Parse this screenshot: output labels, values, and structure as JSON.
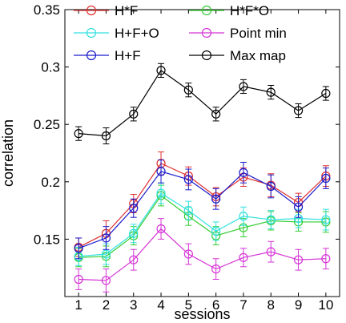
{
  "chart_data": {
    "type": "line",
    "title": "",
    "xlabel": "sessions",
    "ylabel": "correlation",
    "x": [
      1,
      2,
      3,
      4,
      5,
      6,
      7,
      8,
      9,
      10
    ],
    "xlim": [
      0.5,
      10.5
    ],
    "ylim": [
      0.1,
      0.35
    ],
    "xticks": [
      "1",
      "2",
      "3",
      "4",
      "5",
      "6",
      "7",
      "8",
      "9",
      "10"
    ],
    "yticks": [
      0.15,
      0.2,
      0.25,
      0.3,
      0.35
    ],
    "ytick_labels": [
      "0.15",
      "0.2",
      "0.25",
      "0.3",
      "0.35"
    ],
    "grid": false,
    "legend_placement": "top, two columns",
    "series": [
      {
        "name": "H*F",
        "color": "#e03030",
        "values": [
          0.143,
          0.155,
          0.181,
          0.216,
          0.205,
          0.187,
          0.204,
          0.197,
          0.182,
          0.205
        ],
        "errors": [
          0.008,
          0.011,
          0.008,
          0.01,
          0.008,
          0.008,
          0.008,
          0.01,
          0.008,
          0.009
        ]
      },
      {
        "name": "H*F*O",
        "color": "#33cc33",
        "values": [
          0.134,
          0.135,
          0.153,
          0.188,
          0.17,
          0.153,
          0.16,
          0.166,
          0.165,
          0.165
        ],
        "errors": [
          0.008,
          0.009,
          0.008,
          0.009,
          0.008,
          0.008,
          0.008,
          0.008,
          0.008,
          0.009
        ]
      },
      {
        "name": "H+F+O",
        "color": "#33e0e0",
        "values": [
          0.135,
          0.137,
          0.155,
          0.19,
          0.175,
          0.157,
          0.17,
          0.167,
          0.168,
          0.167
        ],
        "errors": [
          0.008,
          0.009,
          0.008,
          0.009,
          0.008,
          0.008,
          0.008,
          0.008,
          0.008,
          0.009
        ]
      },
      {
        "name": "Point min",
        "color": "#d633d6",
        "values": [
          0.115,
          0.114,
          0.132,
          0.159,
          0.137,
          0.124,
          0.134,
          0.139,
          0.132,
          0.133
        ],
        "errors": [
          0.009,
          0.01,
          0.009,
          0.009,
          0.009,
          0.009,
          0.008,
          0.009,
          0.009,
          0.009
        ]
      },
      {
        "name": "H+F",
        "color": "#1a1acc",
        "values": [
          0.142,
          0.151,
          0.177,
          0.209,
          0.202,
          0.185,
          0.208,
          0.196,
          0.178,
          0.203
        ],
        "errors": [
          0.009,
          0.01,
          0.008,
          0.01,
          0.009,
          0.009,
          0.009,
          0.01,
          0.009,
          0.009
        ]
      },
      {
        "name": "Max map",
        "color": "#000000",
        "values": [
          0.242,
          0.24,
          0.259,
          0.297,
          0.28,
          0.259,
          0.283,
          0.278,
          0.262,
          0.277
        ],
        "errors": [
          0.006,
          0.007,
          0.006,
          0.006,
          0.006,
          0.006,
          0.006,
          0.006,
          0.006,
          0.006
        ]
      }
    ]
  }
}
